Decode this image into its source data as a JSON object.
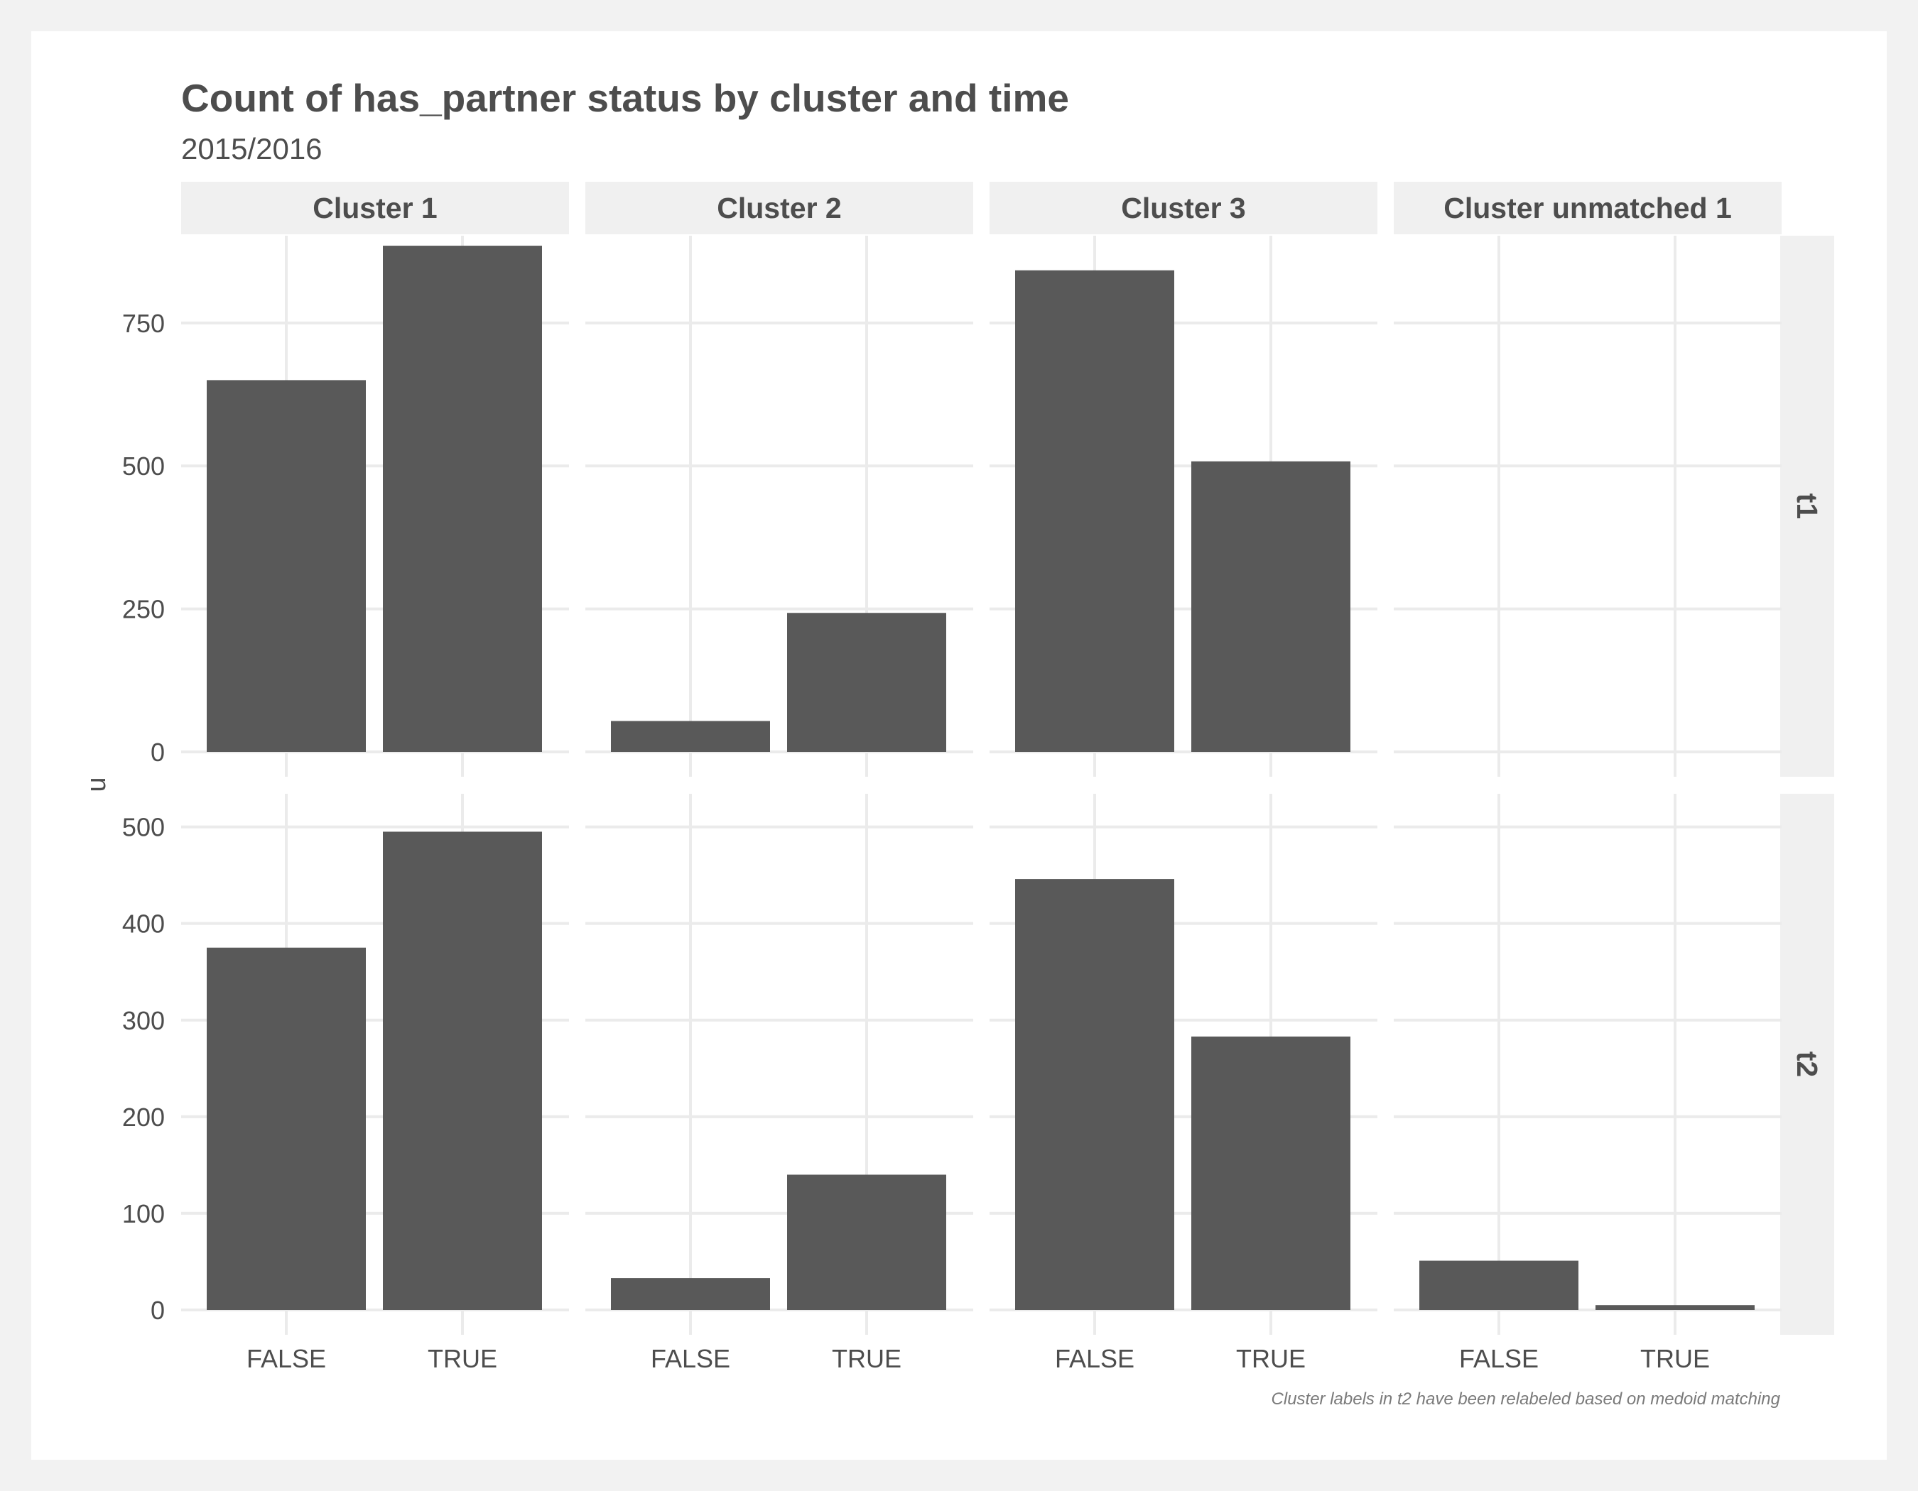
{
  "chart_data": {
    "type": "bar",
    "title": "Count of has_partner status by cluster and time",
    "subtitle": "2015/2016",
    "ylabel": "n",
    "caption": "Cluster labels in t2 have been relabeled based on medoid matching",
    "categories": [
      "FALSE",
      "TRUE"
    ],
    "columns": [
      "Cluster 1",
      "Cluster 2",
      "Cluster 3",
      "Cluster unmatched 1"
    ],
    "rows": [
      {
        "label": "t1",
        "ylim": [
          0,
          900
        ],
        "yticks": [
          0,
          250,
          500,
          750
        ],
        "panels": [
          {
            "cluster": "Cluster 1",
            "values": [
              650,
              885
            ]
          },
          {
            "cluster": "Cluster 2",
            "values": [
              54,
              243
            ]
          },
          {
            "cluster": "Cluster 3",
            "values": [
              842,
              508
            ]
          },
          {
            "cluster": "Cluster unmatched 1",
            "values": [
              0,
              0
            ]
          }
        ]
      },
      {
        "label": "t2",
        "ylim": [
          0,
          510
        ],
        "yticks": [
          0,
          100,
          200,
          300,
          400,
          500
        ],
        "panels": [
          {
            "cluster": "Cluster 1",
            "values": [
              375,
              495
            ]
          },
          {
            "cluster": "Cluster 2",
            "values": [
              33,
              140
            ]
          },
          {
            "cluster": "Cluster 3",
            "values": [
              446,
              283
            ]
          },
          {
            "cluster": "Cluster unmatched 1",
            "values": [
              51,
              5
            ]
          }
        ]
      }
    ],
    "bar_color": "#595959",
    "strip_color": "#f0f0f0",
    "grid_color": "#ebebeb",
    "grid": true,
    "legend": "none"
  }
}
